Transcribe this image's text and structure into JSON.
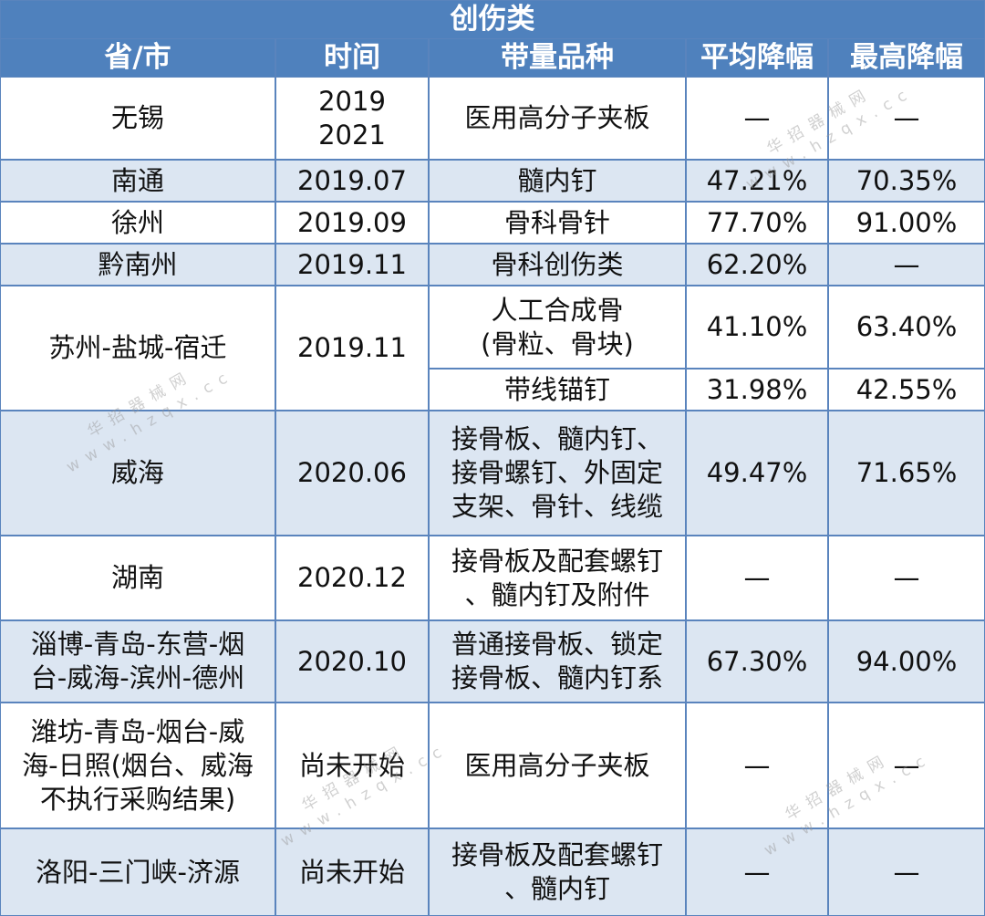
{
  "table": {
    "title": "创伤类",
    "header": [
      "省/市",
      "时间",
      "带量品种",
      "平均降幅",
      "最高降幅"
    ],
    "rows": [
      {
        "region": [
          "无锡"
        ],
        "time": [
          "2019",
          "2021"
        ],
        "items": [
          {
            "product": [
              "医用高分子夹板"
            ],
            "avg": "—",
            "max": "—"
          }
        ]
      },
      {
        "region": [
          "南通"
        ],
        "time": [
          "2019.07"
        ],
        "items": [
          {
            "product": [
              "髓内钉"
            ],
            "avg": "47.21%",
            "max": "70.35%"
          }
        ]
      },
      {
        "region": [
          "徐州"
        ],
        "time": [
          "2019.09"
        ],
        "items": [
          {
            "product": [
              "骨科骨针"
            ],
            "avg": "77.70%",
            "max": "91.00%"
          }
        ]
      },
      {
        "region": [
          "黔南州"
        ],
        "time": [
          "2019.11"
        ],
        "items": [
          {
            "product": [
              "骨科创伤类"
            ],
            "avg": "62.20%",
            "max": "—"
          }
        ]
      },
      {
        "region": [
          "苏州-盐城-宿迁"
        ],
        "time": [
          "2019.11"
        ],
        "items": [
          {
            "product": [
              "人工合成骨",
              "(骨粒、骨块)"
            ],
            "avg": "41.10%",
            "max": "63.40%"
          },
          {
            "product": [
              "带线锚钉"
            ],
            "avg": "31.98%",
            "max": "42.55%"
          }
        ]
      },
      {
        "region": [
          "威海"
        ],
        "time": [
          "2020.06"
        ],
        "items": [
          {
            "product": [
              "接骨板、髓内钉、",
              "接骨螺钉、外固定",
              "支架、骨针、线缆"
            ],
            "avg": "49.47%",
            "max": "71.65%"
          }
        ]
      },
      {
        "region": [
          "湖南"
        ],
        "time": [
          "2020.12"
        ],
        "items": [
          {
            "product": [
              "接骨板及配套螺钉",
              "、髓内钉及附件"
            ],
            "avg": "—",
            "max": "—"
          }
        ]
      },
      {
        "region": [
          "淄博-青岛-东营-烟",
          "台-威海-滨州-德州"
        ],
        "time": [
          "2020.10"
        ],
        "items": [
          {
            "product": [
              "普通接骨板、锁定",
              "接骨板、髓内钉系"
            ],
            "avg": "67.30%",
            "max": "94.00%"
          }
        ]
      },
      {
        "region": [
          "潍坊-青岛-烟台-威",
          "海-日照(烟台、威海",
          "不执行采购结果)"
        ],
        "time": [
          "尚未开始"
        ],
        "items": [
          {
            "product": [
              "医用高分子夹板"
            ],
            "avg": "—",
            "max": "—"
          }
        ]
      },
      {
        "region": [
          "洛阳-三门峡-济源"
        ],
        "time": [
          "尚未开始"
        ],
        "items": [
          {
            "product": [
              "接骨板及配套螺钉",
              "、髓内钉"
            ],
            "avg": "—",
            "max": "—"
          }
        ]
      }
    ]
  },
  "watermark": {
    "name": "华招器械网",
    "url": "www.hzqx.cc"
  }
}
